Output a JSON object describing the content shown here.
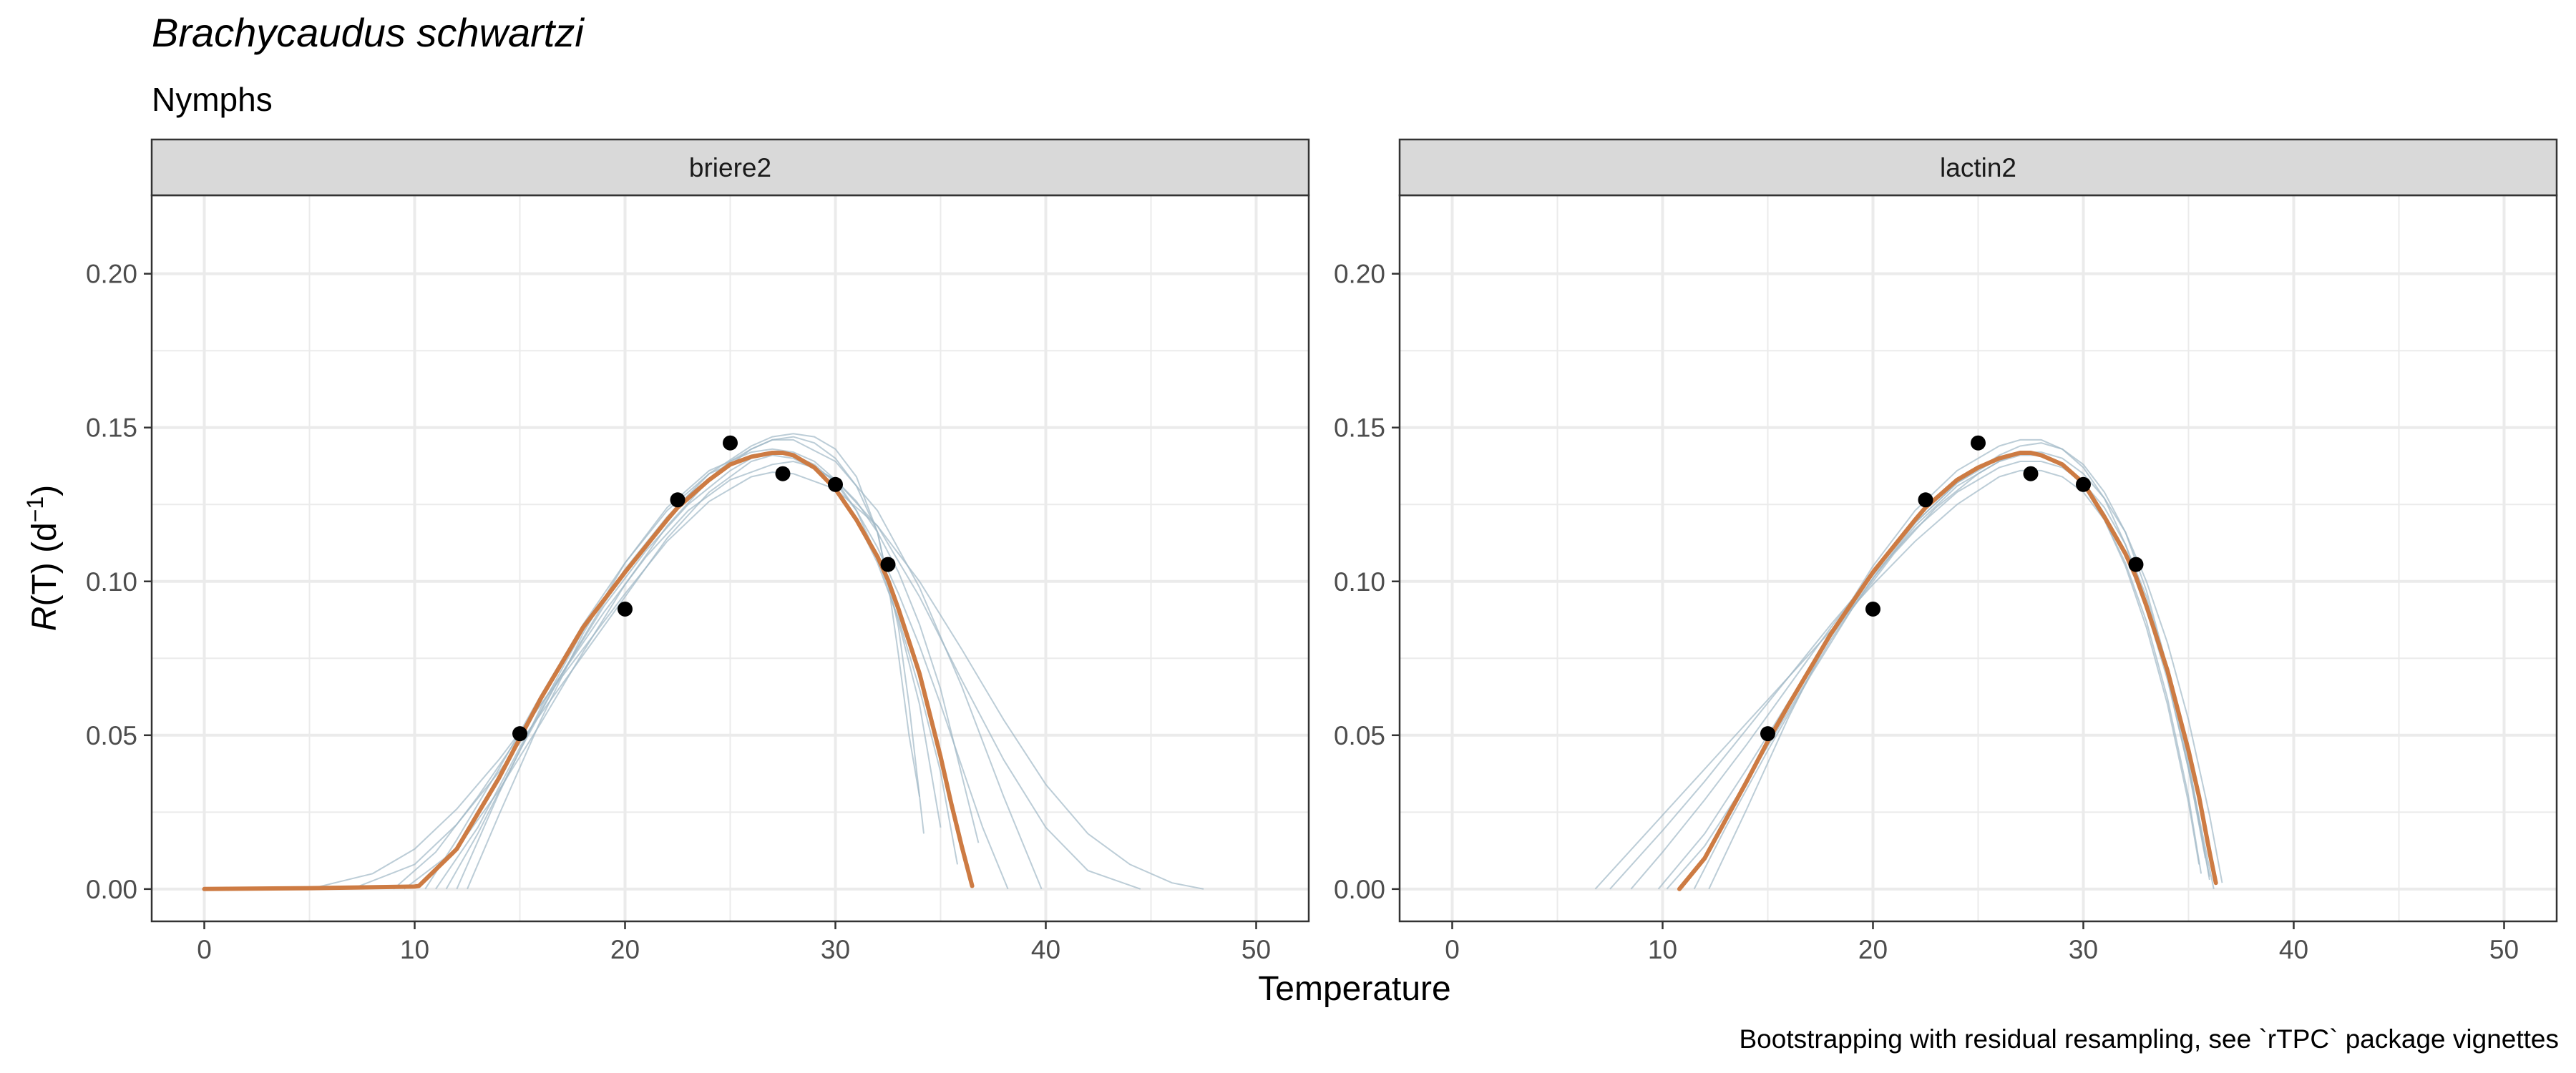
{
  "title": "Brachycaudus schwartzi",
  "subtitle": "Nymphs",
  "caption": "Bootstrapping with residual resampling, see `rTPC` package vignettes",
  "colors": {
    "fit": "#cd7b43",
    "bootstrap": "#9fb8c6",
    "points": "#000000",
    "strip_fill": "#d9d9d9",
    "grid": "#ebebeb",
    "panel_border": "#333333",
    "tick_text": "#4d4d4d"
  },
  "chart_data": {
    "type": "line",
    "xlabel": "Temperature",
    "ylabel": {
      "prefix": "R",
      "middle": "(T) (d",
      "superscript": "−1",
      "suffix": ")"
    },
    "xlim": [
      -2.5,
      52.5
    ],
    "ylim": [
      -0.0105,
      0.2255
    ],
    "x_ticks": [
      0,
      10,
      20,
      30,
      40,
      50
    ],
    "x_tick_labels": [
      "0",
      "10",
      "20",
      "30",
      "40",
      "50"
    ],
    "y_ticks": [
      0,
      0.05,
      0.1,
      0.15,
      0.2
    ],
    "y_tick_labels": [
      "0.00",
      "0.05",
      "0.10",
      "0.15",
      "0.20"
    ],
    "grid": true,
    "points": {
      "x": [
        15,
        20,
        22.5,
        25,
        27.5,
        30,
        32.5
      ],
      "y": [
        0.0505,
        0.091,
        0.1265,
        0.145,
        0.135,
        0.1315,
        0.1055
      ]
    },
    "panels": [
      {
        "label": "briere2",
        "fit": {
          "x": [
            0,
            5,
            10,
            10.2,
            12,
            14,
            15,
            16,
            18,
            20,
            22,
            22.5,
            24,
            25,
            26,
            27,
            27.5,
            28,
            29,
            30,
            31,
            32,
            32.5,
            33,
            34,
            35,
            35.5,
            36,
            36.5
          ],
          "y": [
            0,
            0.0003,
            0.0008,
            0.001,
            0.013,
            0.036,
            0.049,
            0.062,
            0.085,
            0.103,
            0.12,
            0.124,
            0.133,
            0.138,
            0.1405,
            0.1418,
            0.1418,
            0.141,
            0.137,
            0.13,
            0.12,
            0.108,
            0.1005,
            0.091,
            0.07,
            0.043,
            0.028,
            0.014,
            0.001
          ]
        },
        "bootstrap": [
          {
            "x": [
              5,
              8,
              10,
              12,
              14,
              16,
              18,
              20,
              22,
              24,
              26,
              27,
              28,
              30,
              32,
              34,
              36,
              38,
              40,
              42,
              44,
              46,
              47.5
            ],
            "y": [
              0,
              0.005,
              0.013,
              0.026,
              0.042,
              0.06,
              0.078,
              0.096,
              0.113,
              0.126,
              0.134,
              0.1355,
              0.135,
              0.13,
              0.118,
              0.1,
              0.078,
              0.055,
              0.034,
              0.018,
              0.008,
              0.002,
              0
            ]
          },
          {
            "x": [
              7,
              10,
              12,
              14,
              16,
              18,
              20,
              22,
              24,
              26,
              27,
              28,
              30,
              32,
              34,
              36,
              38,
              40,
              42,
              44.5
            ],
            "y": [
              0,
              0.008,
              0.021,
              0.038,
              0.057,
              0.076,
              0.095,
              0.114,
              0.129,
              0.139,
              0.141,
              0.14,
              0.133,
              0.118,
              0.095,
              0.068,
              0.042,
              0.02,
              0.006,
              0
            ]
          },
          {
            "x": [
              9.5,
              12,
              14,
              16,
              18,
              20,
              22,
              24,
              26,
              27,
              28,
              30,
              32,
              34,
              36,
              38,
              39.8
            ],
            "y": [
              0,
              0.013,
              0.032,
              0.054,
              0.077,
              0.099,
              0.118,
              0.133,
              0.143,
              0.146,
              0.146,
              0.139,
              0.123,
              0.098,
              0.066,
              0.03,
              0
            ]
          },
          {
            "x": [
              11,
              13,
              15,
              17,
              19,
              21,
              23,
              25,
              26,
              27,
              28,
              29,
              30,
              31,
              32,
              33,
              34,
              35,
              36,
              37,
              38.2
            ],
            "y": [
              0,
              0.02,
              0.046,
              0.07,
              0.092,
              0.11,
              0.125,
              0.136,
              0.14,
              0.142,
              0.141,
              0.138,
              0.132,
              0.123,
              0.111,
              0.096,
              0.079,
              0.06,
              0.04,
              0.02,
              0
            ]
          },
          {
            "x": [
              11.5,
              13,
              15,
              17,
              19,
              21,
              23,
              25,
              26,
              27,
              28,
              29,
              30,
              31,
              32,
              33,
              33.5,
              34.2
            ],
            "y": [
              0,
              0.018,
              0.045,
              0.07,
              0.093,
              0.112,
              0.128,
              0.139,
              0.143,
              0.146,
              0.147,
              0.145,
              0.14,
              0.131,
              0.116,
              0.085,
              0.06,
              0.018
            ]
          },
          {
            "x": [
              12,
              14,
              16,
              18,
              20,
              22,
              24,
              26,
              27,
              28,
              29,
              30,
              31,
              32,
              32.5,
              33,
              33.5,
              34
            ],
            "y": [
              0,
              0.031,
              0.059,
              0.084,
              0.104,
              0.121,
              0.135,
              0.144,
              0.147,
              0.148,
              0.147,
              0.143,
              0.134,
              0.116,
              0.1,
              0.076,
              0.05,
              0.03
            ]
          },
          {
            "x": [
              10.5,
              12,
              14,
              16,
              18,
              20,
              22,
              24,
              26,
              27,
              28,
              29,
              30,
              31,
              32,
              33,
              34,
              35,
              35.8
            ],
            "y": [
              0,
              0.016,
              0.039,
              0.063,
              0.086,
              0.106,
              0.123,
              0.135,
              0.141,
              0.142,
              0.141,
              0.137,
              0.13,
              0.12,
              0.106,
              0.088,
              0.065,
              0.038,
              0.008
            ]
          },
          {
            "x": [
              12.5,
              14,
              16,
              18,
              20,
              22,
              24,
              26,
              27,
              28,
              29,
              30,
              31,
              32,
              33,
              34,
              35
            ],
            "y": [
              0,
              0.024,
              0.055,
              0.083,
              0.106,
              0.124,
              0.136,
              0.142,
              0.143,
              0.142,
              0.139,
              0.133,
              0.123,
              0.108,
              0.087,
              0.06,
              0.02
            ]
          },
          {
            "x": [
              9,
              11,
              13,
              15,
              17,
              19,
              21,
              23,
              25,
              27,
              28,
              29,
              30,
              31,
              32,
              33,
              34,
              35,
              36.8
            ],
            "y": [
              0,
              0.012,
              0.03,
              0.05,
              0.07,
              0.09,
              0.108,
              0.123,
              0.133,
              0.138,
              0.139,
              0.137,
              0.133,
              0.126,
              0.116,
              0.103,
              0.086,
              0.065,
              0.015
            ]
          }
        ]
      },
      {
        "label": "lactin2",
        "fit": {
          "x": [
            10.8,
            12,
            14,
            15,
            16,
            18,
            20,
            22,
            22.5,
            24,
            25,
            26,
            27,
            27.5,
            28,
            29,
            30,
            31,
            32,
            32.5,
            33,
            34,
            35,
            35.5,
            36,
            36.3
          ],
          "y": [
            0,
            0.01,
            0.035,
            0.048,
            0.06,
            0.083,
            0.103,
            0.12,
            0.124,
            0.133,
            0.137,
            0.14,
            0.1418,
            0.1418,
            0.141,
            0.138,
            0.132,
            0.121,
            0.109,
            0.1015,
            0.092,
            0.071,
            0.045,
            0.03,
            0.012,
            0.002
          ]
        },
        "bootstrap": [
          {
            "x": [
              6.8,
              10,
              12,
              14,
              16,
              18,
              20,
              22,
              24,
              26,
              27,
              28,
              29,
              30,
              31,
              32,
              33,
              34,
              35,
              35.6
            ],
            "y": [
              0,
              0.024,
              0.039,
              0.054,
              0.069,
              0.084,
              0.099,
              0.113,
              0.125,
              0.134,
              0.136,
              0.136,
              0.134,
              0.129,
              0.12,
              0.106,
              0.087,
              0.062,
              0.03,
              0.005
            ]
          },
          {
            "x": [
              7.5,
              10,
              12,
              14,
              16,
              18,
              20,
              22,
              24,
              26,
              27,
              28,
              29,
              30,
              31,
              32,
              33,
              34,
              35,
              36
            ],
            "y": [
              0,
              0.019,
              0.035,
              0.052,
              0.069,
              0.086,
              0.102,
              0.117,
              0.129,
              0.137,
              0.139,
              0.139,
              0.137,
              0.132,
              0.124,
              0.112,
              0.095,
              0.072,
              0.042,
              0.003
            ]
          },
          {
            "x": [
              8.5,
              10,
              12,
              14,
              16,
              18,
              20,
              22,
              24,
              26,
              27,
              28,
              29,
              30,
              31,
              32,
              33,
              34,
              35,
              36.2
            ],
            "y": [
              0,
              0.012,
              0.029,
              0.047,
              0.066,
              0.085,
              0.103,
              0.119,
              0.132,
              0.141,
              0.144,
              0.145,
              0.143,
              0.138,
              0.129,
              0.116,
              0.097,
              0.072,
              0.04,
              0
            ]
          },
          {
            "x": [
              11.5,
              13,
              15,
              17,
              19,
              21,
              23,
              25,
              26,
              27,
              28,
              29,
              30,
              31,
              32,
              33,
              34,
              35,
              36,
              36.6
            ],
            "y": [
              0,
              0.02,
              0.045,
              0.069,
              0.091,
              0.109,
              0.124,
              0.135,
              0.139,
              0.142,
              0.142,
              0.14,
              0.135,
              0.127,
              0.116,
              0.1,
              0.08,
              0.055,
              0.024,
              0.002
            ]
          },
          {
            "x": [
              12.2,
              14,
              16,
              18,
              20,
              22,
              24,
              26,
              27,
              28,
              29,
              30,
              31,
              32,
              33,
              34,
              35,
              35.8
            ],
            "y": [
              0,
              0.026,
              0.056,
              0.083,
              0.105,
              0.123,
              0.136,
              0.144,
              0.146,
              0.146,
              0.143,
              0.137,
              0.127,
              0.112,
              0.093,
              0.069,
              0.039,
              0.01
            ]
          },
          {
            "x": [
              9.8,
              12,
              14,
              16,
              18,
              20,
              22,
              24,
              26,
              27,
              28,
              29,
              30,
              31,
              32,
              33,
              34,
              35,
              36
            ],
            "y": [
              0,
              0.018,
              0.039,
              0.061,
              0.082,
              0.101,
              0.118,
              0.131,
              0.139,
              0.141,
              0.141,
              0.138,
              0.132,
              0.122,
              0.109,
              0.091,
              0.068,
              0.039,
              0.004
            ]
          },
          {
            "x": [
              10.2,
              12,
              14,
              16,
              18,
              20,
              22,
              24,
              26,
              27,
              28,
              29,
              30,
              31,
              32,
              33,
              34,
              35,
              35.5
            ],
            "y": [
              0,
              0.014,
              0.035,
              0.058,
              0.081,
              0.101,
              0.119,
              0.132,
              0.14,
              0.142,
              0.141,
              0.138,
              0.131,
              0.12,
              0.105,
              0.085,
              0.06,
              0.028,
              0.008
            ]
          }
        ]
      }
    ]
  }
}
